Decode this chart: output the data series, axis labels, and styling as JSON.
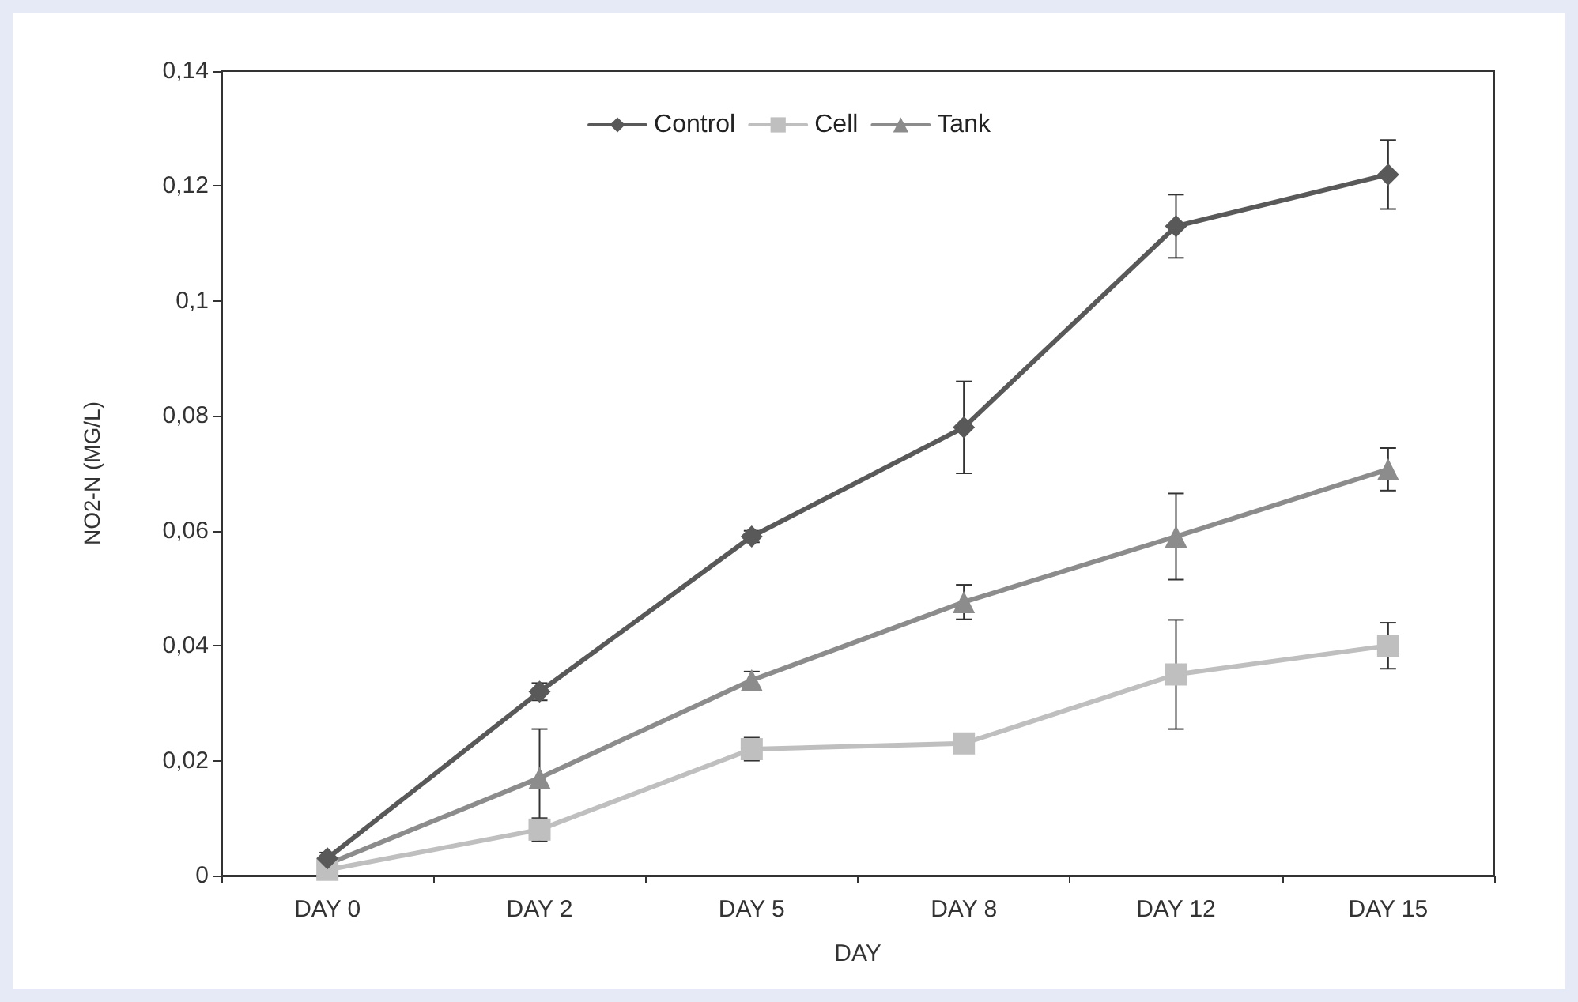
{
  "chart_data": {
    "type": "line",
    "xlabel": "DAY",
    "ylabel": "NO2-N (MG/L)",
    "categories": [
      "DAY 0",
      "DAY 2",
      "DAY 5",
      "DAY 8",
      "DAY 12",
      "DAY 15"
    ],
    "series": [
      {
        "name": "Control",
        "color": "#595959",
        "marker": "diamond",
        "values": [
          0.003,
          0.032,
          0.059,
          0.078,
          0.113,
          0.122
        ],
        "errors": [
          0.001,
          0.0015,
          0.001,
          0.008,
          0.0055,
          0.006
        ]
      },
      {
        "name": "Cell",
        "color": "#bfbfbf",
        "marker": "square",
        "values": [
          0.001,
          0.008,
          0.022,
          0.023,
          0.035,
          0.04
        ],
        "errors": [
          0.0005,
          0.002,
          0.002,
          null,
          0.0095,
          0.004
        ]
      },
      {
        "name": "Tank",
        "color": "#8c8c8c",
        "marker": "triangle",
        "values": [
          0.002,
          0.017,
          0.034,
          0.0476,
          0.059,
          0.0707
        ],
        "errors": [
          0.001,
          0.0085,
          0.0015,
          0.003,
          0.0075,
          0.0037
        ]
      }
    ],
    "ylim": [
      0,
      0.14
    ],
    "yticks": [
      0,
      {
        "value": 0.02,
        "label": "0,02"
      },
      {
        "value": 0.04,
        "label": "0,04"
      },
      {
        "value": 0.06,
        "label": "0,06"
      },
      {
        "value": 0.08,
        "label": "0,08"
      },
      {
        "value": 0.1,
        "label": "0,1"
      },
      {
        "value": 0.12,
        "label": "0,12"
      },
      {
        "value": 0.14,
        "label": "0,14"
      }
    ],
    "grid": false,
    "legend": "top",
    "line_style": "solid"
  }
}
